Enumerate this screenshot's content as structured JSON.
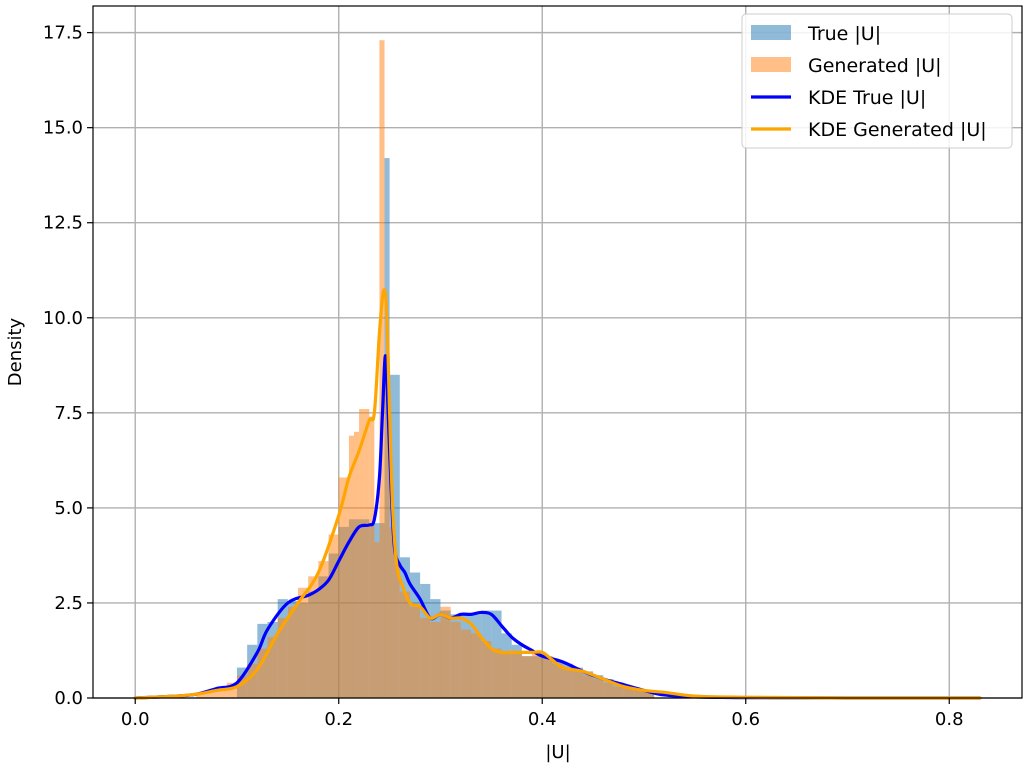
{
  "chart_data": {
    "type": "histogram_kde",
    "title": "",
    "xlabel": "|U|",
    "ylabel": "Density",
    "xlim": [
      -0.0415,
      0.8715
    ],
    "ylim": [
      0,
      18.2
    ],
    "x_ticks": [
      0.0,
      0.2,
      0.4,
      0.6,
      0.8
    ],
    "x_tick_labels": [
      "0.0",
      "0.2",
      "0.4",
      "0.6",
      "0.8"
    ],
    "y_ticks": [
      0.0,
      2.5,
      5.0,
      7.5,
      10.0,
      12.5,
      15.0,
      17.5
    ],
    "y_tick_labels": [
      "0.0",
      "2.5",
      "5.0",
      "7.5",
      "10.0",
      "12.5",
      "15.0",
      "17.5"
    ],
    "grid": true,
    "legend_position": "top-right",
    "histograms": [
      {
        "name": "True |U|",
        "color": "#1f77b4",
        "opacity": 0.5,
        "bin_edges": [
          0.1,
          0.11,
          0.12,
          0.13,
          0.14,
          0.15,
          0.16,
          0.17,
          0.18,
          0.19,
          0.2,
          0.21,
          0.22,
          0.23,
          0.24,
          0.245,
          0.25,
          0.26,
          0.27,
          0.28,
          0.29,
          0.3,
          0.31,
          0.32,
          0.33,
          0.34,
          0.35,
          0.36,
          0.37,
          0.38,
          0.39,
          0.4,
          0.41,
          0.42,
          0.43,
          0.44,
          0.45,
          0.46,
          0.47,
          0.48,
          0.49,
          0.5,
          0.51
        ],
        "densities": [
          0.8,
          1.4,
          1.95,
          2.0,
          2.6,
          2.55,
          2.5,
          2.8,
          3.2,
          3.8,
          4.5,
          4.7,
          4.7,
          4.6,
          4.6,
          14.2,
          8.5,
          3.7,
          3.3,
          3.0,
          2.6,
          2.3,
          2.2,
          2.2,
          2.2,
          2.3,
          2.3,
          1.7,
          1.4,
          1.1,
          1.1,
          1.1,
          1.0,
          0.9,
          0.8,
          0.7,
          0.6,
          0.5,
          0.4,
          0.3,
          0.25,
          0.2
        ]
      },
      {
        "name": "Generated |U|",
        "color": "#ff7f0e",
        "opacity": 0.5,
        "bin_edges": [
          0.06,
          0.07,
          0.08,
          0.09,
          0.1,
          0.11,
          0.12,
          0.13,
          0.14,
          0.15,
          0.16,
          0.17,
          0.18,
          0.19,
          0.2,
          0.21,
          0.215,
          0.22,
          0.225,
          0.23,
          0.235,
          0.24,
          0.245,
          0.25,
          0.255,
          0.26,
          0.27,
          0.28,
          0.29,
          0.3,
          0.31,
          0.32,
          0.33,
          0.34,
          0.35,
          0.36,
          0.37,
          0.38,
          0.39,
          0.4,
          0.41,
          0.42,
          0.43,
          0.44,
          0.45,
          0.46,
          0.47,
          0.48,
          0.49,
          0.5,
          0.51
        ],
        "densities": [
          0.1,
          0.2,
          0.3,
          0.4,
          0.6,
          0.9,
          1.3,
          1.6,
          2.1,
          2.4,
          2.9,
          3.2,
          3.6,
          4.3,
          5.8,
          6.9,
          7.0,
          7.6,
          7.6,
          7.4,
          4.1,
          17.3,
          9.0,
          4.5,
          3.5,
          2.8,
          2.4,
          2.1,
          2.0,
          2.4,
          2.0,
          1.8,
          1.7,
          1.5,
          1.3,
          1.2,
          1.2,
          1.1,
          1.2,
          1.1,
          0.9,
          0.8,
          0.7,
          0.6,
          0.5,
          0.4,
          0.3,
          0.3,
          0.2,
          0.15
        ]
      }
    ],
    "series": [
      {
        "name": "KDE True |U|",
        "color": "#0000ff",
        "x": [
          0.0,
          0.04,
          0.06,
          0.08,
          0.1,
          0.12,
          0.13,
          0.15,
          0.17,
          0.18,
          0.19,
          0.2,
          0.21,
          0.22,
          0.23,
          0.235,
          0.24,
          0.243,
          0.246,
          0.249,
          0.252,
          0.255,
          0.26,
          0.265,
          0.27,
          0.28,
          0.29,
          0.3,
          0.31,
          0.32,
          0.33,
          0.34,
          0.35,
          0.36,
          0.37,
          0.38,
          0.39,
          0.4,
          0.42,
          0.44,
          0.46,
          0.48,
          0.5,
          0.52,
          0.55,
          0.6,
          0.7,
          0.83
        ],
        "y": [
          0.0,
          0.05,
          0.1,
          0.25,
          0.4,
          1.2,
          1.8,
          2.5,
          2.7,
          2.85,
          3.1,
          3.6,
          4.1,
          4.5,
          4.55,
          4.7,
          5.8,
          7.5,
          9.0,
          7.2,
          5.2,
          3.9,
          3.5,
          3.3,
          3.0,
          2.6,
          2.1,
          2.2,
          2.1,
          2.2,
          2.2,
          2.25,
          2.2,
          1.9,
          1.6,
          1.4,
          1.25,
          1.1,
          0.95,
          0.7,
          0.5,
          0.35,
          0.2,
          0.08,
          0.03,
          0.01,
          0.0,
          0.0
        ]
      },
      {
        "name": "KDE Generated |U|",
        "color": "#ffa500",
        "x": [
          0.0,
          0.04,
          0.06,
          0.08,
          0.1,
          0.12,
          0.14,
          0.16,
          0.18,
          0.2,
          0.21,
          0.22,
          0.23,
          0.235,
          0.24,
          0.244,
          0.247,
          0.25,
          0.253,
          0.257,
          0.262,
          0.27,
          0.28,
          0.29,
          0.3,
          0.31,
          0.32,
          0.33,
          0.34,
          0.35,
          0.36,
          0.37,
          0.38,
          0.39,
          0.4,
          0.41,
          0.42,
          0.44,
          0.46,
          0.48,
          0.5,
          0.52,
          0.55,
          0.6,
          0.7,
          0.83
        ],
        "y": [
          0.0,
          0.05,
          0.1,
          0.2,
          0.3,
          0.75,
          1.7,
          2.5,
          3.3,
          4.8,
          5.8,
          6.5,
          7.3,
          7.5,
          9.6,
          10.7,
          10.2,
          7.5,
          5.0,
          3.5,
          3.0,
          2.5,
          2.4,
          2.1,
          2.2,
          2.1,
          2.1,
          1.95,
          1.6,
          1.3,
          1.2,
          1.2,
          1.2,
          1.2,
          1.2,
          1.0,
          0.8,
          0.7,
          0.5,
          0.3,
          0.2,
          0.15,
          0.05,
          0.02,
          0.0,
          0.0
        ]
      }
    ],
    "legend": [
      {
        "label": "True |U|",
        "kind": "patch",
        "color": "#1f77b4",
        "opacity": 0.5
      },
      {
        "label": "Generated |U|",
        "kind": "patch",
        "color": "#ff7f0e",
        "opacity": 0.5
      },
      {
        "label": "KDE True |U|",
        "kind": "line",
        "color": "#0000ff"
      },
      {
        "label": "KDE Generated |U|",
        "kind": "line",
        "color": "#ffa500"
      }
    ]
  }
}
